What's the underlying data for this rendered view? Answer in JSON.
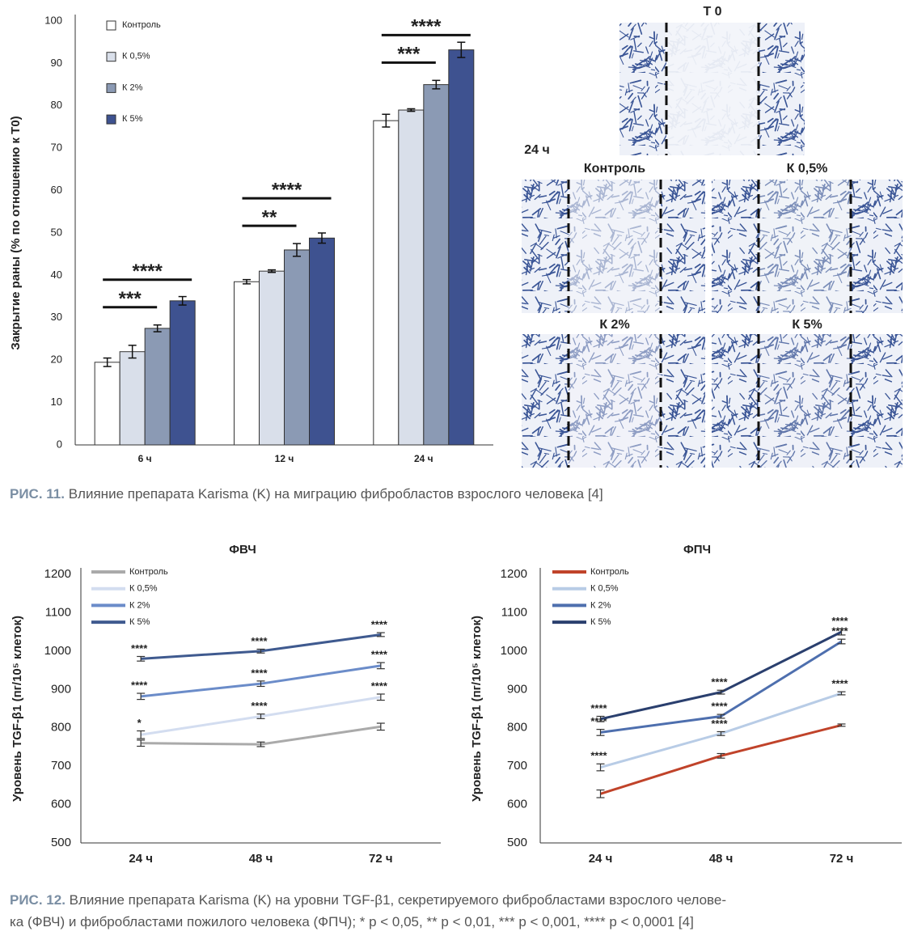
{
  "figures": [
    {
      "caption_label": "РИС. 11.",
      "caption_lines": [
        "Влияние препарата Karisma (K) на миграцию фибробластов взрослого человека [4]"
      ]
    },
    {
      "caption_label": "РИС. 12.",
      "caption_lines": [
        "Влияние препарата Karisma (K) на уровни TGF-β1, секретируемого фибробластами взрослого челове-",
        "ка (ФВЧ) и фибробластами пожилого человека (ФПЧ); * p < 0,05, ** p < 0,01, *** p < 0,001, **** p < 0,0001 [4]"
      ]
    }
  ],
  "panels": {
    "top_label": "Т 0",
    "time_label": "24 ч",
    "labels": [
      "Контроль",
      "К 0,5%",
      "К 2%",
      "К 5%"
    ]
  },
  "chart_data": [
    {
      "type": "bar",
      "ylabel": "Закрытие раны (% по отношению к Т0)",
      "categories": [
        "6 ч",
        "12 ч",
        "24 ч"
      ],
      "series": [
        {
          "name": "Контроль",
          "color": "#ffffff",
          "values": [
            19.5,
            38.5,
            76.5
          ],
          "errors": [
            1,
            0.5,
            1.5
          ]
        },
        {
          "name": "К 0,5%",
          "color": "#d9dfea",
          "values": [
            22,
            41,
            79
          ],
          "errors": [
            1.5,
            0.3,
            0.3
          ]
        },
        {
          "name": "К 2%",
          "color": "#8b9ab4",
          "values": [
            27.5,
            46,
            85
          ],
          "errors": [
            0.8,
            1.5,
            1
          ]
        },
        {
          "name": "К 5%",
          "color": "#3e5290",
          "values": [
            34,
            48.8,
            93.2
          ],
          "errors": [
            1,
            1.2,
            1.8
          ]
        }
      ],
      "annotations": [
        [
          "***",
          "****"
        ],
        [
          "**",
          "****"
        ],
        [
          "***",
          "****"
        ]
      ],
      "ylim": [
        0,
        100
      ],
      "yticks": [
        0,
        10,
        20,
        30,
        40,
        50,
        60,
        70,
        80,
        90,
        100
      ]
    },
    {
      "type": "line",
      "title": "ФВЧ",
      "ylabel": "Уровень TGF-β1 (пг/10⁵ клеток)",
      "categories": [
        "24 ч",
        "48 ч",
        "72 ч"
      ],
      "series": [
        {
          "name": "Контроль",
          "color": "#aaaaaa",
          "values": [
            760,
            757,
            803
          ],
          "errors": [
            8,
            6,
            9
          ]
        },
        {
          "name": "К 0,5%",
          "color": "#d3ddf0",
          "values": [
            782,
            830,
            880
          ],
          "errors": [
            10,
            6,
            8
          ],
          "annotations": [
            "*",
            "****",
            "****"
          ]
        },
        {
          "name": "К 2%",
          "color": "#6b8cc9",
          "values": [
            882,
            915,
            962
          ],
          "errors": [
            8,
            7,
            8
          ],
          "annotations": [
            "****",
            "****",
            "****"
          ]
        },
        {
          "name": "К 5%",
          "color": "#3f5a8f",
          "values": [
            980,
            1000,
            1043
          ],
          "errors": [
            6,
            5,
            5
          ],
          "annotations": [
            "****",
            "****",
            "****"
          ]
        }
      ],
      "ylim": [
        500,
        1200
      ],
      "yticks": [
        500,
        600,
        700,
        800,
        900,
        1000,
        1100,
        1200
      ]
    },
    {
      "type": "line",
      "title": "ФПЧ",
      "ylabel": "Уровень TGF-β1 (пг/10⁵ клеток)",
      "categories": [
        "24 ч",
        "48 ч",
        "72 ч"
      ],
      "series": [
        {
          "name": "Контроль",
          "color": "#c0432a",
          "values": [
            628,
            727,
            807
          ],
          "errors": [
            10,
            6,
            3
          ]
        },
        {
          "name": "К 0,5%",
          "color": "#b8cce6",
          "values": [
            697,
            785,
            890
          ],
          "errors": [
            9,
            5,
            4
          ],
          "annotations": [
            "****",
            "****",
            "****"
          ]
        },
        {
          "name": "К 2%",
          "color": "#4e6fae",
          "values": [
            788,
            830,
            1025
          ],
          "errors": [
            8,
            5,
            6
          ],
          "annotations": [
            "****",
            "****",
            "****"
          ]
        },
        {
          "name": "К 5%",
          "color": "#2a3f6e",
          "values": [
            823,
            893,
            1050
          ],
          "errors": [
            7,
            5,
            8
          ],
          "annotations": [
            "****",
            "****",
            "****"
          ]
        }
      ],
      "ylim": [
        500,
        1200
      ],
      "yticks": [
        500,
        600,
        700,
        800,
        900,
        1000,
        1100,
        1200
      ]
    }
  ]
}
